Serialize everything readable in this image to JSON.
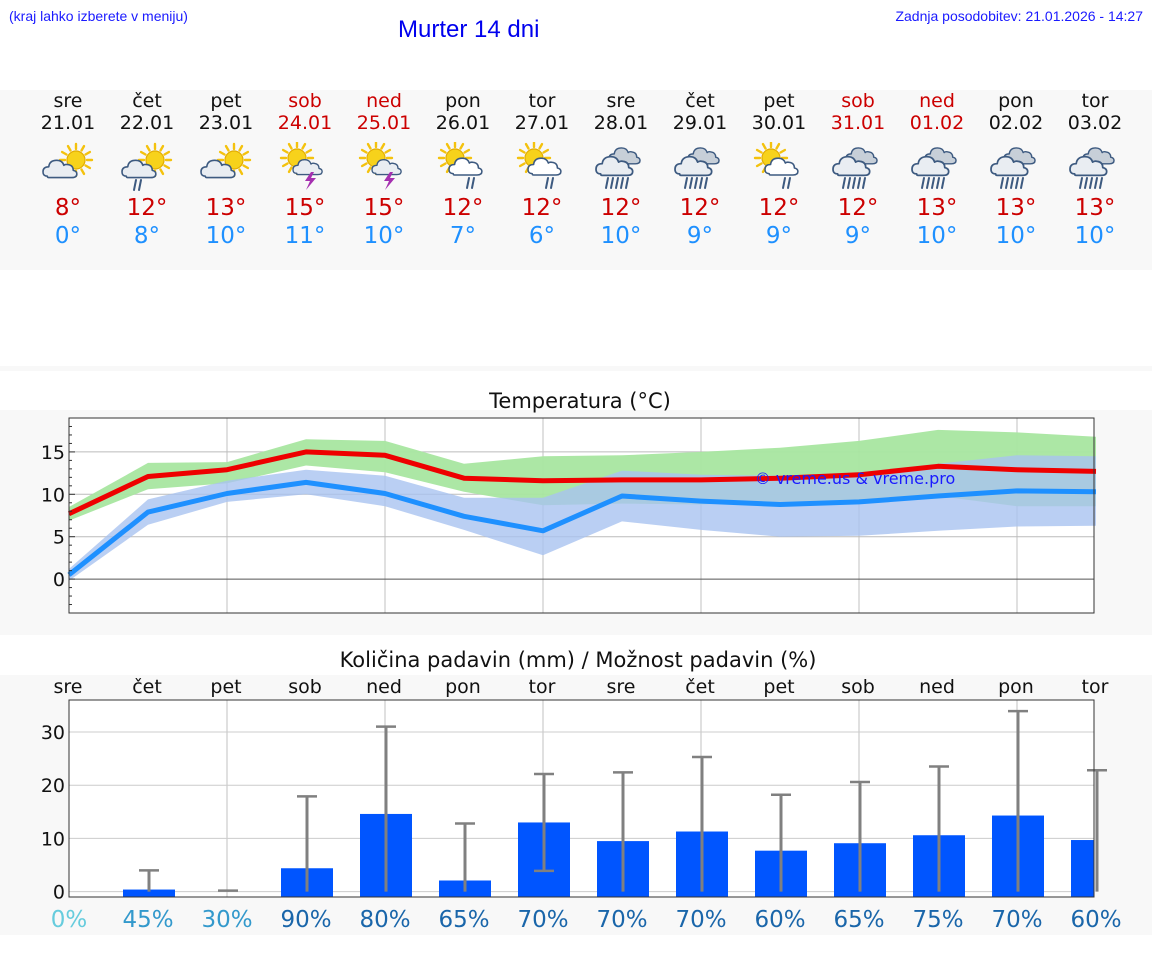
{
  "header": {
    "note": "(kraj lahko izberete v meniju)",
    "title": "Murter 14 dni",
    "update": "Zadnja posodobitev: 21.01.2026 - 14:27"
  },
  "days": [
    {
      "name": "sre",
      "date": "21.01",
      "weekend": false,
      "icon": "partly-cloudy-icon",
      "tmax": "8°",
      "tmin": "0°"
    },
    {
      "name": "čet",
      "date": "22.01",
      "weekend": false,
      "icon": "partly-cloudy-rain-icon",
      "tmax": "12°",
      "tmin": "8°"
    },
    {
      "name": "pet",
      "date": "23.01",
      "weekend": false,
      "icon": "partly-cloudy-icon",
      "tmax": "13°",
      "tmin": "10°"
    },
    {
      "name": "sob",
      "date": "24.01",
      "weekend": true,
      "icon": "sun-thunderstorm-icon",
      "tmax": "15°",
      "tmin": "11°"
    },
    {
      "name": "ned",
      "date": "25.01",
      "weekend": true,
      "icon": "sun-thunderstorm-icon",
      "tmax": "15°",
      "tmin": "10°"
    },
    {
      "name": "pon",
      "date": "26.01",
      "weekend": false,
      "icon": "sun-rain-icon",
      "tmax": "12°",
      "tmin": "7°"
    },
    {
      "name": "tor",
      "date": "27.01",
      "weekend": false,
      "icon": "sun-rain-icon",
      "tmax": "12°",
      "tmin": "6°"
    },
    {
      "name": "sre",
      "date": "28.01",
      "weekend": false,
      "icon": "heavy-rain-icon",
      "tmax": "12°",
      "tmin": "10°"
    },
    {
      "name": "čet",
      "date": "29.01",
      "weekend": false,
      "icon": "heavy-rain-icon",
      "tmax": "12°",
      "tmin": "9°"
    },
    {
      "name": "pet",
      "date": "30.01",
      "weekend": false,
      "icon": "sun-rain-icon",
      "tmax": "12°",
      "tmin": "9°"
    },
    {
      "name": "sob",
      "date": "31.01",
      "weekend": true,
      "icon": "heavy-rain-icon",
      "tmax": "12°",
      "tmin": "9°"
    },
    {
      "name": "ned",
      "date": "01.02",
      "weekend": true,
      "icon": "heavy-rain-icon",
      "tmax": "13°",
      "tmin": "10°"
    },
    {
      "name": "pon",
      "date": "02.02",
      "weekend": false,
      "icon": "heavy-rain-icon",
      "tmax": "13°",
      "tmin": "10°"
    },
    {
      "name": "tor",
      "date": "03.02",
      "weekend": false,
      "icon": "heavy-rain-icon",
      "tmax": "13°",
      "tmin": "10°"
    }
  ],
  "colors": {
    "max": "#ee0000",
    "min": "#1e90ff",
    "max_band": "#a8e6a0",
    "min_band": "#a9c3f0",
    "overlap_band": "#7fbfaa",
    "bar": "#0055ff",
    "error": "#808080",
    "pct_dry": "#66ccdd",
    "pct_low": "#3399cc",
    "pct_high": "#1a66aa"
  },
  "chart_data": [
    {
      "type": "line",
      "title": "Temperatura (°C)",
      "watermark": "© vreme.us & vreme.pro",
      "ylim": [
        -4,
        19
      ],
      "yticks": [
        0,
        5,
        10,
        15
      ],
      "grid": true,
      "x": [
        0,
        1,
        2,
        3,
        4,
        5,
        6,
        7,
        8,
        9,
        10,
        11,
        12,
        13
      ],
      "series": [
        {
          "name": "max",
          "values": [
            7.7,
            12.1,
            12.9,
            15.0,
            14.6,
            11.9,
            11.6,
            11.7,
            11.7,
            11.9,
            12.3,
            13.3,
            12.9,
            12.7
          ]
        },
        {
          "name": "min",
          "values": [
            0.5,
            7.9,
            10.1,
            11.4,
            10.1,
            7.4,
            5.7,
            9.8,
            9.2,
            8.8,
            9.1,
            9.8,
            10.4,
            10.3
          ]
        }
      ],
      "bands": [
        {
          "name": "max_range",
          "upper": [
            8.5,
            13.7,
            13.8,
            16.5,
            16.3,
            13.6,
            14.5,
            14.6,
            15.0,
            15.5,
            16.3,
            17.6,
            17.3,
            16.8
          ],
          "lower": [
            6.9,
            10.6,
            11.3,
            13.4,
            12.6,
            10.3,
            8.7,
            8.9,
            8.8,
            9.1,
            9.0,
            9.8,
            8.6,
            8.6
          ]
        },
        {
          "name": "min_range",
          "upper": [
            1.2,
            9.4,
            11.6,
            12.9,
            12.2,
            9.6,
            9.6,
            12.8,
            12.3,
            12.2,
            12.6,
            13.6,
            14.6,
            14.5
          ],
          "lower": [
            -0.2,
            6.4,
            9.1,
            10.0,
            8.6,
            5.8,
            2.8,
            6.8,
            5.8,
            5.0,
            5.1,
            5.7,
            6.2,
            6.3
          ]
        }
      ]
    },
    {
      "type": "bar",
      "title": "Količina padavin (mm) / Možnost padavin (%)",
      "ylim": [
        -1,
        36
      ],
      "yticks": [
        0,
        10,
        20,
        30
      ],
      "categories": [
        "sre",
        "čet",
        "pet",
        "sob",
        "ned",
        "pon",
        "tor",
        "sre",
        "čet",
        "pet",
        "sob",
        "ned",
        "pon",
        "tor"
      ],
      "values": [
        0,
        0.4,
        0,
        4.4,
        14.6,
        2.1,
        13.0,
        9.5,
        11.3,
        7.7,
        9.1,
        10.6,
        14.3,
        9.7
      ],
      "error_low": [
        0,
        0,
        0,
        0,
        0,
        0,
        3.9,
        0,
        0,
        0,
        0,
        0,
        0,
        0
      ],
      "error_high": [
        0,
        4.0,
        0.2,
        17.9,
        31.0,
        12.8,
        22.1,
        22.4,
        25.3,
        18.2,
        20.6,
        23.5,
        33.9,
        22.8
      ],
      "probability": [
        "0%",
        "45%",
        "30%",
        "90%",
        "80%",
        "65%",
        "70%",
        "70%",
        "70%",
        "60%",
        "65%",
        "75%",
        "70%",
        "60%"
      ]
    }
  ]
}
